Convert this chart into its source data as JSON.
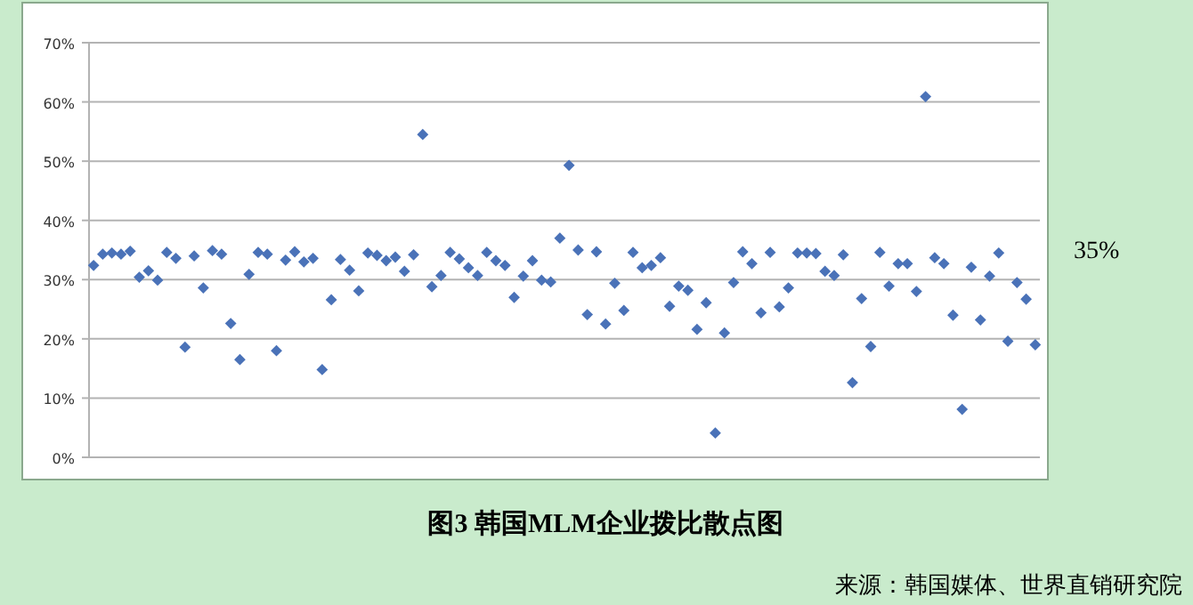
{
  "chart_data": {
    "type": "scatter",
    "title": "图3 韩国MLM企业拨比散点图",
    "annotations": [
      "35%",
      "来源：韩国媒体、世界直销研究院"
    ],
    "categories": [
      null,
      null,
      null,
      null,
      null,
      null,
      null,
      null,
      null,
      null,
      null,
      null,
      null,
      null,
      null,
      null,
      null,
      null,
      null,
      null,
      null,
      null,
      null,
      null,
      null,
      null,
      null,
      null,
      null,
      null,
      null,
      null,
      null,
      null,
      null,
      null,
      null,
      null,
      null,
      null,
      null,
      null,
      null,
      null,
      null,
      null,
      null,
      null,
      null,
      null,
      null,
      null,
      null,
      null,
      null,
      null,
      null,
      null,
      null,
      null,
      null,
      null,
      null,
      null,
      null,
      null,
      null,
      null,
      null,
      null,
      null,
      null,
      null,
      null,
      null,
      null,
      null,
      null,
      null,
      null,
      null,
      null,
      null,
      null,
      null,
      null,
      null,
      null,
      null,
      null,
      null,
      null,
      null,
      null,
      null,
      null,
      null,
      null,
      null,
      null,
      null,
      null,
      null,
      null
    ],
    "values": [
      32.4,
      34.3,
      34.5,
      34.3,
      34.8,
      30.4,
      31.5,
      29.9,
      34.6,
      33.6,
      18.6,
      34.0,
      28.6,
      34.9,
      34.3,
      22.6,
      16.5,
      30.9,
      34.6,
      34.3,
      18.0,
      33.3,
      34.7,
      33.0,
      33.6,
      14.8,
      26.6,
      33.4,
      31.6,
      28.1,
      34.5,
      34.1,
      33.2,
      33.8,
      31.4,
      34.2,
      54.5,
      28.8,
      30.7,
      34.6,
      33.5,
      32.0,
      30.7,
      34.6,
      33.2,
      32.4,
      27.0,
      30.6,
      33.2,
      29.9,
      29.6,
      37.0,
      49.3,
      35.0,
      24.1,
      34.7,
      22.5,
      29.4,
      24.8,
      34.6,
      32.0,
      32.4,
      33.7,
      25.5,
      28.9,
      28.2,
      21.6,
      26.1,
      4.1,
      21.0,
      29.5,
      34.7,
      32.7,
      24.4,
      34.6,
      25.4,
      28.6,
      34.5,
      34.5,
      34.4,
      31.4,
      30.7,
      34.2,
      12.6,
      26.8,
      18.7,
      34.6,
      28.9,
      32.7,
      32.7,
      28.0,
      60.9,
      33.7,
      32.7,
      24.0,
      8.1,
      32.1,
      23.2,
      30.6,
      34.5,
      19.6,
      29.5,
      26.7,
      19.0
    ],
    "color": "#4a72b8",
    "marker": "diamond",
    "grid": "y",
    "tick_labels": "y",
    "ylim": [
      0,
      70
    ],
    "yticks": [
      {
        "value": 0,
        "label": "0%"
      },
      {
        "value": 10,
        "label": "10%"
      },
      {
        "value": 20,
        "label": "20%"
      },
      {
        "value": 30,
        "label": "30%"
      },
      {
        "value": 40,
        "label": "40%"
      },
      {
        "value": 50,
        "label": "50%"
      },
      {
        "value": 60,
        "label": "60%"
      },
      {
        "value": 70,
        "label": "70%"
      }
    ]
  }
}
